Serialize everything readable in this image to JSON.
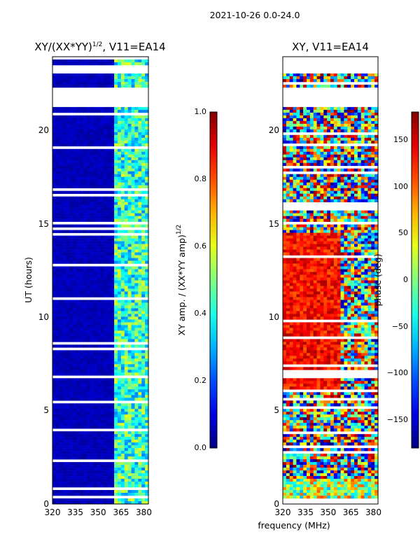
{
  "suptitle": "2021-10-26 0.0-24.0",
  "colors": {
    "jet": [
      "#00007f",
      "#0000ff",
      "#007fff",
      "#00ffff",
      "#7fff7f",
      "#ffff00",
      "#ff7f00",
      "#ff0000",
      "#7f0000"
    ],
    "gap": "#ffffff"
  },
  "chart_data": [
    {
      "type": "heatmap",
      "title_main": "XY/(XX*YY)",
      "title_sup": "1/2",
      "title_tail": ", V11=EA14",
      "xlabel": "frequency (MHz)",
      "ylabel": "UT (hours)",
      "xlim": [
        320,
        383
      ],
      "ylim": [
        0,
        24
      ],
      "xticks": [
        "320",
        "335",
        "350",
        "365",
        "380"
      ],
      "yticks": [
        "0",
        "5",
        "10",
        "15",
        "20"
      ],
      "colorbar": {
        "label_main": "XY amp. / (XX*YY amp)",
        "label_sup": "1/2",
        "range": [
          0.0,
          1.0
        ],
        "ticks": [
          "0.0",
          "0.2",
          "0.4",
          "0.6",
          "0.8",
          "1.0"
        ]
      },
      "data_gaps_hours": [
        [
          21.35,
          22.4
        ],
        [
          23.15,
          23.6
        ],
        [
          23.8,
          24.0
        ]
      ],
      "bright_band_mhz": [
        360,
        383
      ]
    },
    {
      "type": "heatmap",
      "title_main": "XY, V11=EA14",
      "xlabel": "frequency (MHz)",
      "ylabel": "",
      "xlim": [
        320,
        383
      ],
      "ylim": [
        0,
        24
      ],
      "xticks": [
        "320",
        "335",
        "350",
        "365",
        "380"
      ],
      "yticks": [
        "0",
        "5",
        "10",
        "15",
        "20"
      ],
      "colorbar": {
        "label_main": "phase (deg)",
        "range": [
          -180,
          180
        ],
        "ticks": [
          "−150",
          "−100",
          "−50",
          "0",
          "50",
          "100",
          "150"
        ]
      },
      "data_gaps_hours": [
        [
          21.35,
          22.4
        ],
        [
          23.15,
          23.6
        ],
        [
          23.8,
          24.0
        ]
      ],
      "high_phase_region": {
        "hours": [
          6.0,
          14.5
        ],
        "mhz": [
          320,
          358
        ]
      }
    }
  ]
}
